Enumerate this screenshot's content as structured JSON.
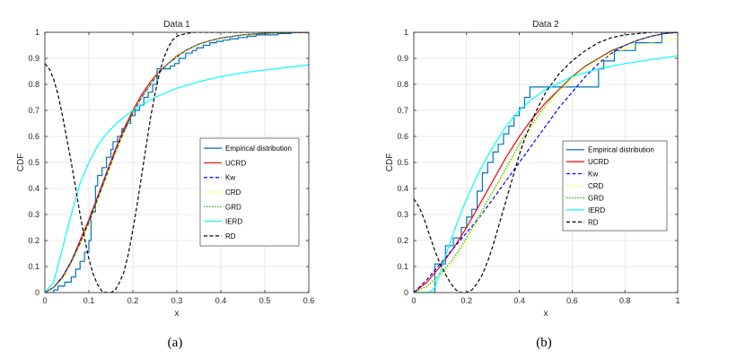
{
  "chart_data": [
    {
      "type": "line",
      "title": "Data 1",
      "xlabel": "x",
      "ylabel": "CDF",
      "caption": "(a)",
      "xlim": [
        0,
        0.6
      ],
      "ylim": [
        0,
        1
      ],
      "xticks": [
        "0",
        "0.1",
        "0.2",
        "0.3",
        "0.4",
        "0.5",
        "0.6"
      ],
      "yticks": [
        "0",
        "0.1",
        "0.2",
        "0.3",
        "0.4",
        "0.5",
        "0.6",
        "0.7",
        "0.8",
        "0.9",
        "1"
      ],
      "legend_position": "middle-right",
      "series": [
        {
          "name": "Empirical distribution",
          "color": "#0072BD",
          "style": "step",
          "x": [
            0.0,
            0.02,
            0.03,
            0.045,
            0.06,
            0.07,
            0.08,
            0.09,
            0.1,
            0.105,
            0.115,
            0.12,
            0.13,
            0.14,
            0.15,
            0.155,
            0.165,
            0.175,
            0.185,
            0.195,
            0.205,
            0.215,
            0.225,
            0.235,
            0.245,
            0.255,
            0.275,
            0.285,
            0.295,
            0.305,
            0.32,
            0.335,
            0.345,
            0.36,
            0.375,
            0.39,
            0.405,
            0.42,
            0.44,
            0.46,
            0.48,
            0.505,
            0.53,
            0.56,
            0.6
          ],
          "y": [
            0.0,
            0.01,
            0.025,
            0.04,
            0.06,
            0.09,
            0.12,
            0.155,
            0.2,
            0.31,
            0.41,
            0.45,
            0.48,
            0.52,
            0.55,
            0.58,
            0.6,
            0.63,
            0.65,
            0.68,
            0.7,
            0.72,
            0.75,
            0.77,
            0.8,
            0.86,
            0.86,
            0.87,
            0.88,
            0.9,
            0.92,
            0.93,
            0.94,
            0.95,
            0.96,
            0.965,
            0.97,
            0.975,
            0.98,
            0.985,
            0.99,
            0.99,
            0.995,
            1.0,
            1.0
          ]
        },
        {
          "name": "UCRD",
          "color": "#FF0000",
          "style": "solid",
          "x": [
            0,
            0.02,
            0.04,
            0.06,
            0.08,
            0.1,
            0.12,
            0.14,
            0.16,
            0.18,
            0.2,
            0.22,
            0.24,
            0.26,
            0.28,
            0.3,
            0.32,
            0.35,
            0.38,
            0.4,
            0.45,
            0.5,
            0.55,
            0.6
          ],
          "y": [
            0,
            0.02,
            0.06,
            0.12,
            0.2,
            0.28,
            0.37,
            0.46,
            0.55,
            0.63,
            0.7,
            0.76,
            0.81,
            0.85,
            0.88,
            0.91,
            0.93,
            0.955,
            0.97,
            0.978,
            0.99,
            0.996,
            0.999,
            1.0
          ]
        },
        {
          "name": "Kw",
          "color": "#0000FF",
          "style": "dashed",
          "x": [
            0,
            0.02,
            0.04,
            0.06,
            0.08,
            0.1,
            0.12,
            0.14,
            0.16,
            0.18,
            0.2,
            0.22,
            0.24,
            0.26,
            0.28,
            0.3,
            0.32,
            0.35,
            0.38,
            0.4,
            0.45,
            0.5,
            0.55,
            0.6
          ],
          "y": [
            0,
            0.02,
            0.06,
            0.12,
            0.19,
            0.27,
            0.36,
            0.45,
            0.54,
            0.62,
            0.69,
            0.75,
            0.8,
            0.845,
            0.88,
            0.905,
            0.93,
            0.955,
            0.97,
            0.978,
            0.99,
            0.996,
            0.999,
            1.0
          ]
        },
        {
          "name": "CRD",
          "color": "#FFFF00",
          "style": "dotted",
          "x": [
            0,
            0.02,
            0.04,
            0.06,
            0.08,
            0.1,
            0.12,
            0.14,
            0.16,
            0.18,
            0.2,
            0.22,
            0.24,
            0.26,
            0.28,
            0.3,
            0.32,
            0.35,
            0.38,
            0.4,
            0.45,
            0.5,
            0.55,
            0.6
          ],
          "y": [
            0,
            0.02,
            0.05,
            0.11,
            0.18,
            0.26,
            0.35,
            0.44,
            0.53,
            0.61,
            0.69,
            0.75,
            0.8,
            0.85,
            0.88,
            0.91,
            0.93,
            0.955,
            0.97,
            0.978,
            0.99,
            0.996,
            0.999,
            1.0
          ]
        },
        {
          "name": "GRD",
          "color": "#00AA00",
          "style": "dotted",
          "x": [
            0,
            0.02,
            0.04,
            0.06,
            0.08,
            0.1,
            0.12,
            0.14,
            0.16,
            0.18,
            0.2,
            0.22,
            0.24,
            0.26,
            0.28,
            0.3,
            0.32,
            0.35,
            0.38,
            0.4,
            0.45,
            0.5,
            0.55,
            0.6
          ],
          "y": [
            0,
            0.02,
            0.055,
            0.115,
            0.19,
            0.27,
            0.36,
            0.45,
            0.54,
            0.62,
            0.69,
            0.75,
            0.8,
            0.845,
            0.88,
            0.905,
            0.93,
            0.955,
            0.97,
            0.978,
            0.99,
            0.996,
            0.999,
            1.0
          ]
        },
        {
          "name": "IERD",
          "color": "#00FFFF",
          "style": "solid",
          "x": [
            0,
            0.02,
            0.04,
            0.06,
            0.08,
            0.1,
            0.12,
            0.14,
            0.16,
            0.18,
            0.2,
            0.25,
            0.3,
            0.35,
            0.4,
            0.45,
            0.5,
            0.55,
            0.6
          ],
          "y": [
            0,
            0.04,
            0.17,
            0.3,
            0.42,
            0.5,
            0.565,
            0.61,
            0.645,
            0.675,
            0.7,
            0.75,
            0.785,
            0.81,
            0.83,
            0.845,
            0.855,
            0.865,
            0.875
          ]
        },
        {
          "name": "RD",
          "color": "#000000",
          "style": "dashed",
          "x": [
            0,
            0.01,
            0.02,
            0.03,
            0.04,
            0.05,
            0.06,
            0.07,
            0.08,
            0.09,
            0.1,
            0.11,
            0.12,
            0.13,
            0.14,
            0.15,
            0.16,
            0.17,
            0.18,
            0.19,
            0.2,
            0.21,
            0.22,
            0.23,
            0.24,
            0.25,
            0.26,
            0.27,
            0.28,
            0.29,
            0.3,
            0.32,
            0.34,
            0.36,
            0.38,
            0.4,
            0.45,
            0.5,
            0.55,
            0.6
          ],
          "y": [
            0.88,
            0.86,
            0.82,
            0.76,
            0.68,
            0.59,
            0.5,
            0.4,
            0.3,
            0.21,
            0.13,
            0.07,
            0.03,
            0.005,
            0.0,
            0.0,
            0.01,
            0.04,
            0.08,
            0.15,
            0.24,
            0.34,
            0.45,
            0.56,
            0.67,
            0.76,
            0.84,
            0.9,
            0.94,
            0.97,
            0.985,
            0.995,
            1.0,
            1.0,
            1.0,
            1.0,
            1.0,
            1.0,
            1.0,
            1.0
          ]
        }
      ]
    },
    {
      "type": "line",
      "title": "Data 2",
      "xlabel": "x",
      "ylabel": "CDF",
      "caption": "(b)",
      "xlim": [
        0,
        1
      ],
      "ylim": [
        0,
        1
      ],
      "xticks": [
        "0",
        "0.2",
        "0.4",
        "0.6",
        "0.8",
        "1"
      ],
      "yticks": [
        "0",
        "0.1",
        "0.2",
        "0.3",
        "0.4",
        "0.5",
        "0.6",
        "0.7",
        "0.8",
        "0.9",
        "1"
      ],
      "legend_position": "middle-right",
      "series": [
        {
          "name": "Empirical distribution",
          "color": "#0072BD",
          "style": "step",
          "x": [
            0.0,
            0.08,
            0.12,
            0.15,
            0.18,
            0.2,
            0.22,
            0.24,
            0.26,
            0.28,
            0.3,
            0.32,
            0.34,
            0.36,
            0.38,
            0.4,
            0.42,
            0.44,
            0.46,
            0.48,
            0.7,
            0.72,
            0.74,
            0.76,
            0.8,
            0.84,
            0.9,
            0.94,
            1.0
          ],
          "y": [
            0.0,
            0.11,
            0.18,
            0.21,
            0.25,
            0.29,
            0.32,
            0.39,
            0.46,
            0.5,
            0.54,
            0.57,
            0.61,
            0.64,
            0.68,
            0.71,
            0.75,
            0.79,
            0.79,
            0.79,
            0.86,
            0.89,
            0.89,
            0.93,
            0.93,
            0.96,
            0.96,
            1.0,
            1.0
          ]
        },
        {
          "name": "UCRD",
          "color": "#FF0000",
          "style": "solid",
          "x": [
            0,
            0.05,
            0.1,
            0.15,
            0.2,
            0.25,
            0.3,
            0.35,
            0.4,
            0.45,
            0.5,
            0.55,
            0.6,
            0.65,
            0.7,
            0.75,
            0.8,
            0.85,
            0.9,
            0.95,
            1.0
          ],
          "y": [
            0,
            0.04,
            0.1,
            0.17,
            0.25,
            0.34,
            0.43,
            0.52,
            0.6,
            0.67,
            0.73,
            0.78,
            0.83,
            0.87,
            0.9,
            0.93,
            0.95,
            0.97,
            0.985,
            0.995,
            1.0
          ]
        },
        {
          "name": "Kw",
          "color": "#0000FF",
          "style": "dashed",
          "x": [
            0,
            0.05,
            0.1,
            0.15,
            0.2,
            0.25,
            0.3,
            0.35,
            0.4,
            0.45,
            0.5,
            0.55,
            0.6,
            0.65,
            0.7,
            0.75,
            0.8,
            0.85,
            0.9,
            0.95,
            1.0
          ],
          "y": [
            0,
            0.05,
            0.11,
            0.17,
            0.23,
            0.29,
            0.36,
            0.43,
            0.5,
            0.57,
            0.64,
            0.71,
            0.77,
            0.83,
            0.88,
            0.92,
            0.95,
            0.97,
            0.985,
            0.995,
            1.0
          ]
        },
        {
          "name": "CRD",
          "color": "#FFFF00",
          "style": "dotted",
          "x": [
            0,
            0.05,
            0.1,
            0.15,
            0.2,
            0.25,
            0.3,
            0.35,
            0.4,
            0.45,
            0.5,
            0.55,
            0.6,
            0.65,
            0.7,
            0.75,
            0.8,
            0.85,
            0.9,
            0.95,
            1.0
          ],
          "y": [
            0,
            0.02,
            0.06,
            0.12,
            0.2,
            0.29,
            0.38,
            0.47,
            0.56,
            0.64,
            0.71,
            0.77,
            0.82,
            0.86,
            0.89,
            0.915,
            0.935,
            0.95,
            0.96,
            0.97,
            0.975
          ]
        },
        {
          "name": "GRD",
          "color": "#00AA00",
          "style": "dotted",
          "x": [
            0,
            0.05,
            0.1,
            0.15,
            0.2,
            0.25,
            0.3,
            0.35,
            0.4,
            0.45,
            0.5,
            0.55,
            0.6,
            0.65,
            0.7,
            0.75,
            0.8,
            0.85,
            0.9,
            0.95,
            1.0
          ],
          "y": [
            0,
            0.025,
            0.07,
            0.13,
            0.21,
            0.3,
            0.39,
            0.48,
            0.57,
            0.65,
            0.72,
            0.78,
            0.83,
            0.87,
            0.9,
            0.93,
            0.95,
            0.97,
            0.985,
            0.995,
            1.0
          ]
        },
        {
          "name": "IERD",
          "color": "#00FFFF",
          "style": "solid",
          "x": [
            0,
            0.06,
            0.08,
            0.1,
            0.12,
            0.15,
            0.2,
            0.25,
            0.3,
            0.35,
            0.4,
            0.45,
            0.5,
            0.55,
            0.6,
            0.7,
            0.8,
            0.9,
            1.0
          ],
          "y": [
            0,
            0.0,
            0.02,
            0.08,
            0.14,
            0.23,
            0.36,
            0.47,
            0.56,
            0.64,
            0.7,
            0.745,
            0.78,
            0.805,
            0.83,
            0.86,
            0.88,
            0.895,
            0.91
          ]
        },
        {
          "name": "RD",
          "color": "#000000",
          "style": "dashed",
          "x": [
            0,
            0.02,
            0.04,
            0.06,
            0.08,
            0.1,
            0.12,
            0.14,
            0.16,
            0.18,
            0.2,
            0.22,
            0.24,
            0.26,
            0.28,
            0.3,
            0.32,
            0.34,
            0.36,
            0.38,
            0.4,
            0.42,
            0.44,
            0.46,
            0.48,
            0.5,
            0.55,
            0.6,
            0.65,
            0.7,
            0.75,
            0.8,
            0.85,
            0.9,
            0.95,
            1.0
          ],
          "y": [
            0.36,
            0.33,
            0.28,
            0.22,
            0.16,
            0.11,
            0.07,
            0.035,
            0.01,
            0.0,
            0.0,
            0.01,
            0.035,
            0.07,
            0.12,
            0.18,
            0.25,
            0.32,
            0.39,
            0.46,
            0.53,
            0.59,
            0.64,
            0.69,
            0.73,
            0.77,
            0.84,
            0.89,
            0.93,
            0.96,
            0.98,
            0.99,
            0.995,
            1.0,
            1.0,
            1.0
          ]
        }
      ]
    }
  ]
}
